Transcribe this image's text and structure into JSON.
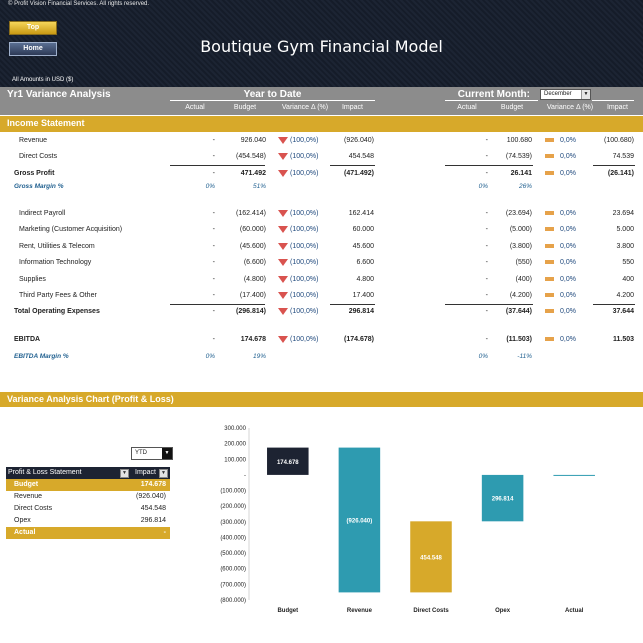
{
  "header": {
    "copyright": "© Profit Vision Financial Services. All rights reserved.",
    "top_button": "Top",
    "home_button": "Home",
    "title": "Boutique Gym Financial Model",
    "amounts": "All Amounts in  USD ($)"
  },
  "variance": {
    "title": "Yr1 Variance Analysis",
    "ytd_title": "Year to Date",
    "cm_title": "Current Month:",
    "month": "December",
    "cols": {
      "actual": "Actual",
      "budget": "Budget",
      "variance": "Variance Δ  (%)",
      "impact": "Impact"
    }
  },
  "income": {
    "title": "Income Statement",
    "rows": {
      "revenue": {
        "label": "Revenue",
        "ytd_actual": "-",
        "ytd_budget": "926.040",
        "ytd_pct": "(100,0%)",
        "ytd_impact": "(926.040)",
        "cm_actual": "-",
        "cm_budget": "100.680",
        "cm_pct": "0,0%",
        "cm_impact": "(100.680)"
      },
      "direct": {
        "label": "Direct Costs",
        "ytd_actual": "-",
        "ytd_budget": "(454.548)",
        "ytd_pct": "(100,0%)",
        "ytd_impact": "454.548",
        "cm_actual": "-",
        "cm_budget": "(74.539)",
        "cm_pct": "0,0%",
        "cm_impact": "74.539"
      },
      "gross": {
        "label": "Gross Profit",
        "ytd_actual": "-",
        "ytd_budget": "471.492",
        "ytd_pct": "(100,0%)",
        "ytd_impact": "(471.492)",
        "cm_actual": "-",
        "cm_budget": "26.141",
        "cm_pct": "0,0%",
        "cm_impact": "(26.141)"
      },
      "gross_margin": {
        "label": "Gross Margin %",
        "ytd_actual": "0%",
        "ytd_budget": "51%",
        "cm_actual": "0%",
        "cm_budget": "26%"
      },
      "payroll": {
        "label": "Indirect Payroll",
        "ytd_actual": "-",
        "ytd_budget": "(162.414)",
        "ytd_pct": "(100,0%)",
        "ytd_impact": "162.414",
        "cm_actual": "-",
        "cm_budget": "(23.694)",
        "cm_pct": "0,0%",
        "cm_impact": "23.694"
      },
      "marketing": {
        "label": "Marketing (Customer Acquisition)",
        "ytd_actual": "-",
        "ytd_budget": "(60.000)",
        "ytd_pct": "(100,0%)",
        "ytd_impact": "60.000",
        "cm_actual": "-",
        "cm_budget": "(5.000)",
        "cm_pct": "0,0%",
        "cm_impact": "5.000"
      },
      "rent": {
        "label": "Rent, Utilities & Telecom",
        "ytd_actual": "-",
        "ytd_budget": "(45.600)",
        "ytd_pct": "(100,0%)",
        "ytd_impact": "45.600",
        "cm_actual": "-",
        "cm_budget": "(3.800)",
        "cm_pct": "0,0%",
        "cm_impact": "3.800"
      },
      "it": {
        "label": "Information Technology",
        "ytd_actual": "-",
        "ytd_budget": "(6.600)",
        "ytd_pct": "(100,0%)",
        "ytd_impact": "6.600",
        "cm_actual": "-",
        "cm_budget": "(550)",
        "cm_pct": "0,0%",
        "cm_impact": "550"
      },
      "supplies": {
        "label": "Supplies",
        "ytd_actual": "-",
        "ytd_budget": "(4.800)",
        "ytd_pct": "(100,0%)",
        "ytd_impact": "4.800",
        "cm_actual": "-",
        "cm_budget": "(400)",
        "cm_pct": "0,0%",
        "cm_impact": "400"
      },
      "third": {
        "label": "Third Party Fees & Other",
        "ytd_actual": "-",
        "ytd_budget": "(17.400)",
        "ytd_pct": "(100,0%)",
        "ytd_impact": "17.400",
        "cm_actual": "-",
        "cm_budget": "(4.200)",
        "cm_pct": "0,0%",
        "cm_impact": "4.200"
      },
      "opex": {
        "label": "Total Operating Expenses",
        "ytd_actual": "-",
        "ytd_budget": "(296.814)",
        "ytd_pct": "(100,0%)",
        "ytd_impact": "296.814",
        "cm_actual": "-",
        "cm_budget": "(37.644)",
        "cm_pct": "0,0%",
        "cm_impact": "37.644"
      },
      "ebitda": {
        "label": "EBITDA",
        "ytd_actual": "-",
        "ytd_budget": "174.678",
        "ytd_pct": "(100,0%)",
        "ytd_impact": "(174.678)",
        "cm_actual": "-",
        "cm_budget": "(11.503)",
        "cm_pct": "0,0%",
        "cm_impact": "11.503"
      },
      "ebitda_margin": {
        "label": "EBITDA Margin %",
        "ytd_actual": "0%",
        "ytd_budget": "19%",
        "cm_actual": "0%",
        "cm_budget": "-11%"
      }
    }
  },
  "chart_section": {
    "title": "Variance Analysis Chart (Profit & Loss)",
    "period": "YTD"
  },
  "pl_table": {
    "col1": "Profit & Loss Statement",
    "col2": "Impact",
    "rows": {
      "budget": {
        "k": "Budget",
        "v": "174.678"
      },
      "revenue": {
        "k": "Revenue",
        "v": "(926.040)"
      },
      "direct": {
        "k": "Direct Costs",
        "v": "454.548"
      },
      "opex": {
        "k": "Opex",
        "v": "296.814"
      },
      "actual": {
        "k": "Actual",
        "v": "-"
      }
    }
  },
  "colors": {
    "gold": "#d7a92a",
    "navy": "#1d2332",
    "teal": "#2e9bb0",
    "grey": "#8c8c8c",
    "red": "#d9534f"
  },
  "chart_data": {
    "type": "bar",
    "subtype": "waterfall",
    "categories": [
      "Budget",
      "Revenue",
      "Direct Costs",
      "Opex",
      "Actual"
    ],
    "values": [
      174678,
      -926040,
      454548,
      296814,
      0
    ],
    "data_labels": [
      "174.678",
      "(926.040)",
      "454.548",
      "296.814",
      ""
    ],
    "ylim": [
      -800000,
      300000
    ],
    "yticks": [
      "300.000",
      "200.000",
      "100.000",
      "-",
      "(100.000)",
      "(200.000)",
      "(300.000)",
      "(400.000)",
      "(500.000)",
      "(600.000)",
      "(700.000)",
      "(800.000)"
    ],
    "colors": [
      "#1d2332",
      "#2e9bb0",
      "#d7a92a",
      "#2e9bb0",
      "#2e9bb0"
    ],
    "grid": false,
    "title": "",
    "xlabel": "",
    "ylabel": ""
  }
}
